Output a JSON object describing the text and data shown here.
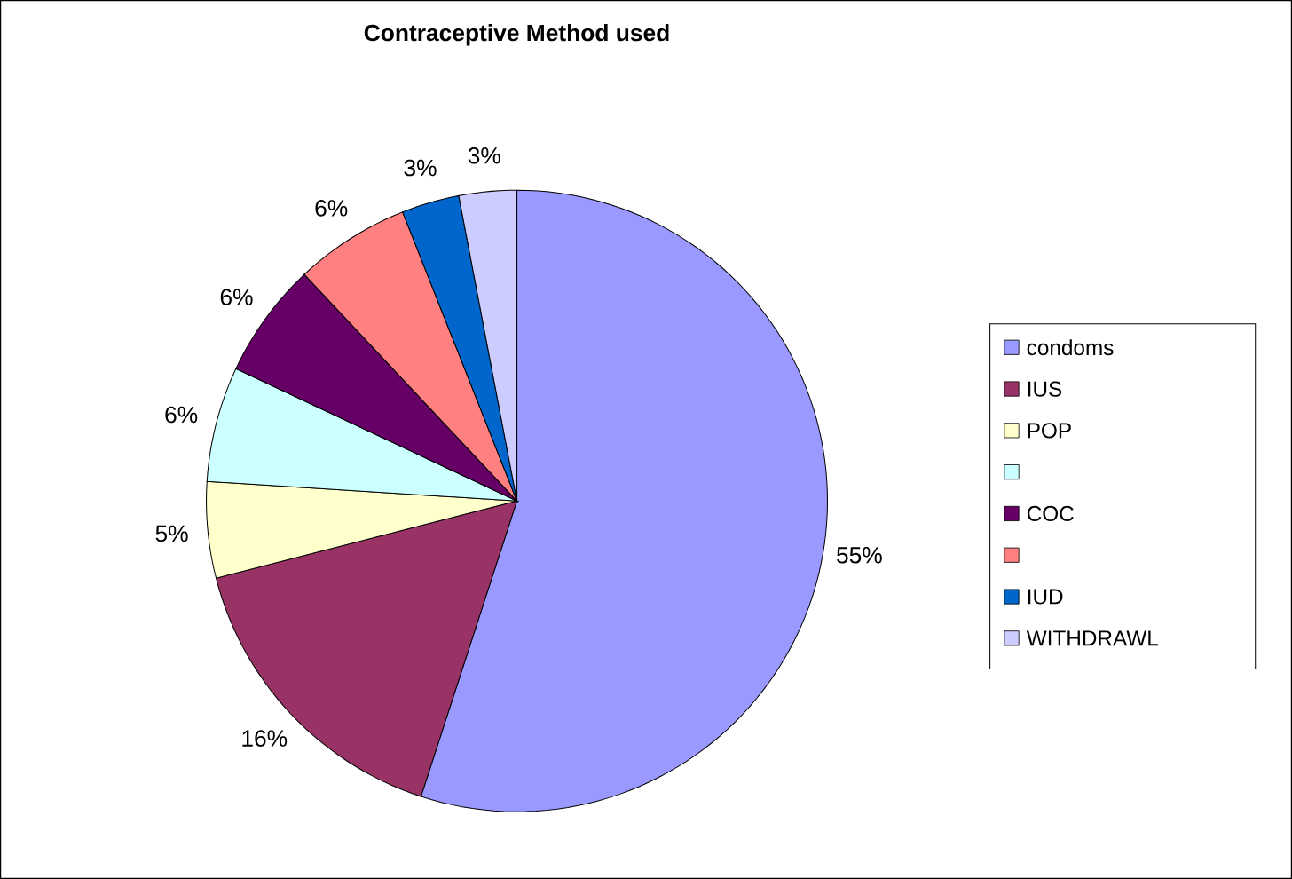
{
  "chart_data": {
    "type": "pie",
    "title": "Contraceptive Method used",
    "categories": [
      "condoms",
      "IUS",
      "POP",
      null,
      "COC",
      null,
      "IUD",
      "WITHDRAWL"
    ],
    "values": [
      55,
      16,
      5,
      6,
      6,
      6,
      3,
      3
    ],
    "colors": [
      "#9999ff",
      "#993366",
      "#ffffcc",
      "#ccffff",
      "#660066",
      "#ff8080",
      "#0066cc",
      "#ccccff"
    ],
    "value_labels": [
      "55%",
      "16%",
      "5%",
      "6%",
      "6%",
      "6%",
      "3%",
      "3%"
    ],
    "legend": "right"
  }
}
